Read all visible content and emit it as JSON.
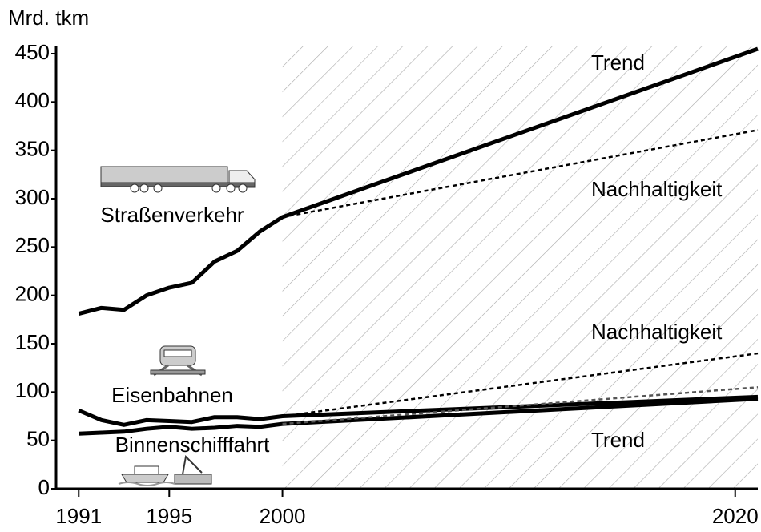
{
  "chart_data": {
    "type": "line",
    "y_label": "Mrd. tkm",
    "x": [
      1991,
      1992,
      1993,
      1994,
      1995,
      1996,
      1997,
      1998,
      1999,
      2000,
      2021
    ],
    "xlim": [
      1990,
      2021
    ],
    "xticks": [
      1991,
      1995,
      2000,
      2020
    ],
    "ylim": [
      0,
      450
    ],
    "yticks": [
      0,
      50,
      100,
      150,
      200,
      250,
      300,
      350,
      400,
      450
    ],
    "forecast_from": 2000,
    "series": [
      {
        "name": "Straßenverkehr",
        "color": "#000000",
        "values": [
          181,
          187,
          185,
          200,
          208,
          213,
          235,
          246,
          266,
          281,
          455
        ]
      },
      {
        "color": "#000000",
        "dashed": true,
        "values": [
          null,
          null,
          null,
          null,
          null,
          null,
          null,
          null,
          null,
          281,
          371
        ]
      },
      {
        "name": "Eisenbahnen",
        "color": "#000000",
        "values": [
          81,
          71,
          66,
          71,
          70,
          69,
          74,
          74,
          72,
          75,
          95
        ]
      },
      {
        "color": "#000000",
        "dashed": true,
        "values": [
          null,
          null,
          null,
          null,
          null,
          null,
          null,
          null,
          null,
          75,
          140
        ]
      },
      {
        "name": "Binnenschifffahrt",
        "color": "#000000",
        "values": [
          57,
          58,
          59,
          62,
          64,
          62,
          63,
          65,
          64,
          67,
          93
        ]
      },
      {
        "color": "#555555",
        "dashed": true,
        "values": [
          null,
          null,
          null,
          null,
          null,
          null,
          null,
          null,
          null,
          67,
          105
        ]
      }
    ],
    "annotations": [
      "Trend",
      "Nachhaltigkeit",
      "Nachhaltigkeit",
      "Trend"
    ]
  }
}
